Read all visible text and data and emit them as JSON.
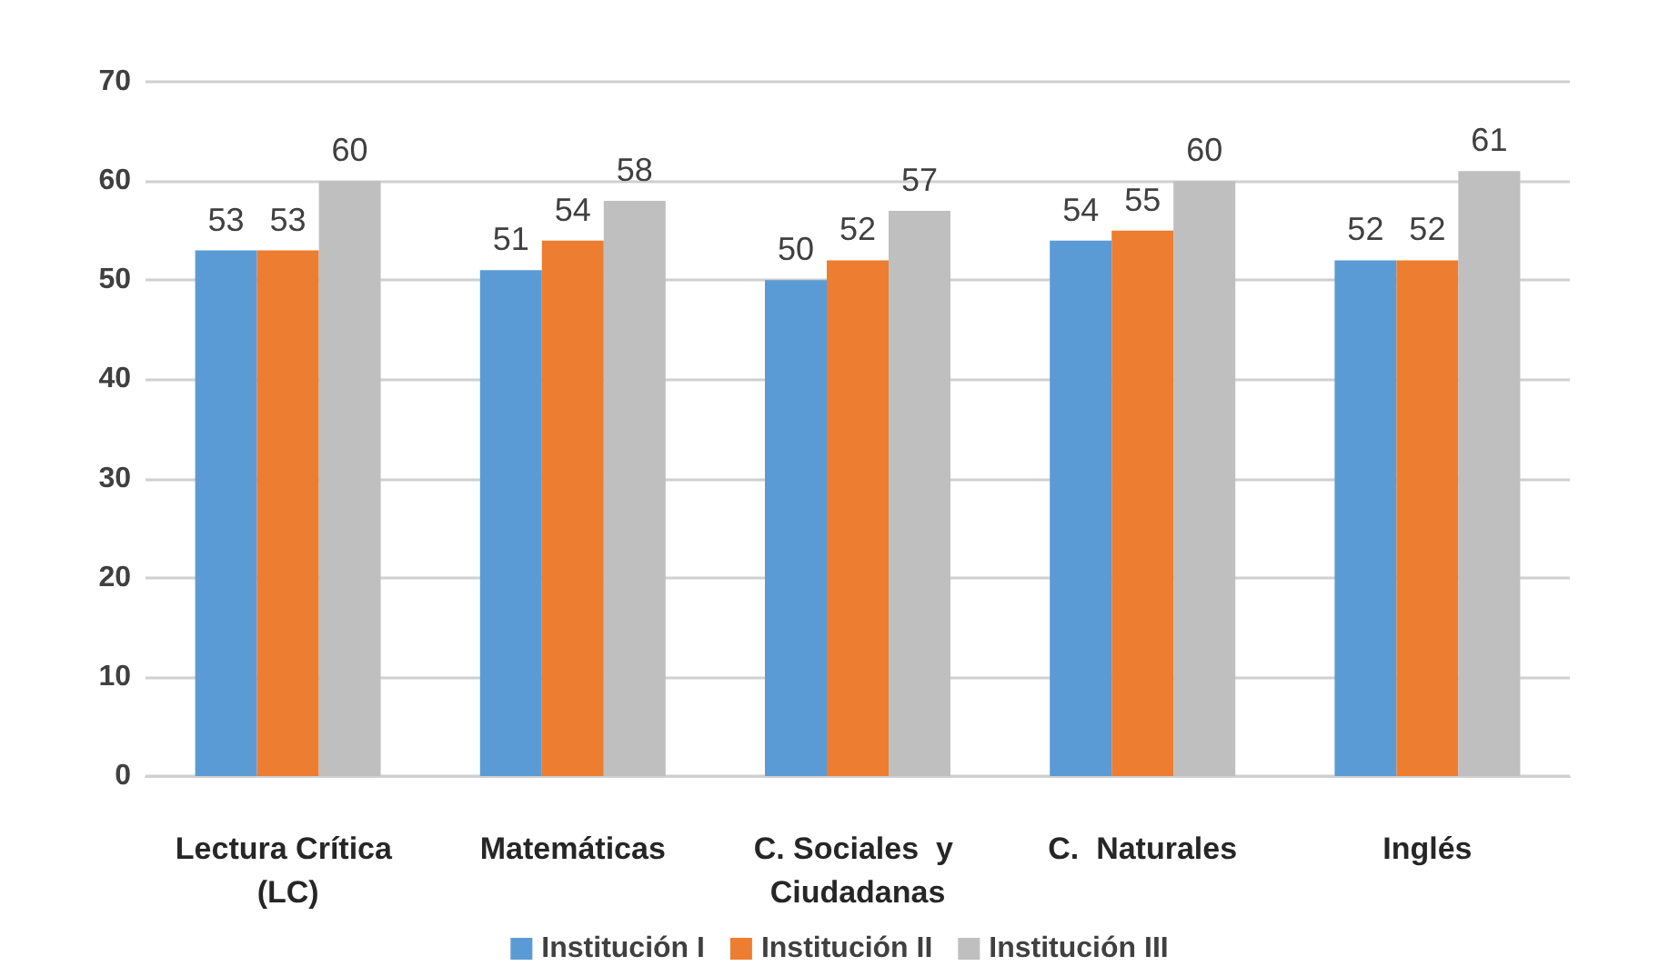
{
  "chart_data": {
    "type": "bar",
    "categories": [
      "Lectura Crítica (LC)",
      "Matemáticas",
      "C. Sociales  y Ciudadanas",
      "C.  Naturales",
      "Inglés"
    ],
    "series": [
      {
        "name": "Institución I",
        "color": "#5b9bd5",
        "values": [
          53,
          51,
          50,
          54,
          52
        ]
      },
      {
        "name": "Institución II",
        "color": "#ed7d31",
        "values": [
          53,
          54,
          52,
          55,
          52
        ]
      },
      {
        "name": "Institución III",
        "color": "#bfbfbf",
        "values": [
          60,
          58,
          57,
          60,
          61
        ]
      }
    ],
    "ylim": [
      0,
      70
    ],
    "yticks": [
      0,
      10,
      20,
      30,
      40,
      50,
      60,
      70
    ],
    "grid": "y",
    "legend": "bottom",
    "data_labels": true
  }
}
